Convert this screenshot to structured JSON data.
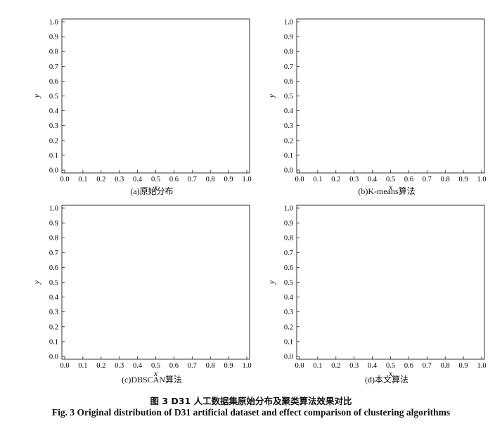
{
  "figure": {
    "caption_cn": "图 3   D31 人工数据集原始分布及聚类算法效果对比",
    "caption_en": "Fig. 3   Original distribution of D31 artificial dataset and effect comparison of clustering algorithms"
  },
  "chart_data": [
    {
      "type": "scatter",
      "caption": "(a)原始分布",
      "xlabel": "x",
      "ylabel": "y",
      "xlim": [
        0,
        1
      ],
      "ylim": [
        0,
        1
      ],
      "xticks": [
        "0.0",
        "0.1",
        "0.2",
        "0.3",
        "0.4",
        "0.5",
        "0.6",
        "0.7",
        "0.8",
        "0.9",
        "1.0"
      ],
      "yticks": [
        "0.0",
        "0.1",
        "0.2",
        "0.3",
        "0.4",
        "0.5",
        "0.6",
        "0.7",
        "0.8",
        "0.9",
        "1.0"
      ],
      "grid": false
    },
    {
      "type": "scatter",
      "caption": "(b)K-means算法",
      "xlabel": "x",
      "ylabel": "y",
      "xlim": [
        0,
        1
      ],
      "ylim": [
        0,
        1
      ],
      "xticks": [
        "0.0",
        "0.1",
        "0.2",
        "0.3",
        "0.4",
        "0.5",
        "0.6",
        "0.7",
        "0.8",
        "0.9",
        "1.0"
      ],
      "yticks": [
        "0.0",
        "0.1",
        "0.2",
        "0.3",
        "0.4",
        "0.5",
        "0.6",
        "0.7",
        "0.8",
        "0.9",
        "1.0"
      ],
      "grid": false
    },
    {
      "type": "scatter",
      "caption": "(c)DBSCAN算法",
      "xlabel": "x",
      "ylabel": "y",
      "xlim": [
        0,
        1
      ],
      "ylim": [
        0,
        1
      ],
      "xticks": [
        "0.0",
        "0.1",
        "0.2",
        "0.3",
        "0.4",
        "0.5",
        "0.6",
        "0.7",
        "0.8",
        "0.9",
        "1.0"
      ],
      "yticks": [
        "0.0",
        "0.1",
        "0.2",
        "0.3",
        "0.4",
        "0.5",
        "0.6",
        "0.7",
        "0.8",
        "0.9",
        "1.0"
      ],
      "grid": false
    },
    {
      "type": "scatter",
      "caption": "(d)本文算法",
      "xlabel": "x",
      "ylabel": "y",
      "xlim": [
        0,
        1
      ],
      "ylim": [
        0,
        1
      ],
      "xticks": [
        "0.0",
        "0.1",
        "0.2",
        "0.3",
        "0.4",
        "0.5",
        "0.6",
        "0.7",
        "0.8",
        "0.9",
        "1.0"
      ],
      "yticks": [
        "0.0",
        "0.1",
        "0.2",
        "0.3",
        "0.4",
        "0.5",
        "0.6",
        "0.7",
        "0.8",
        "0.9",
        "1.0"
      ],
      "grid": false
    }
  ]
}
